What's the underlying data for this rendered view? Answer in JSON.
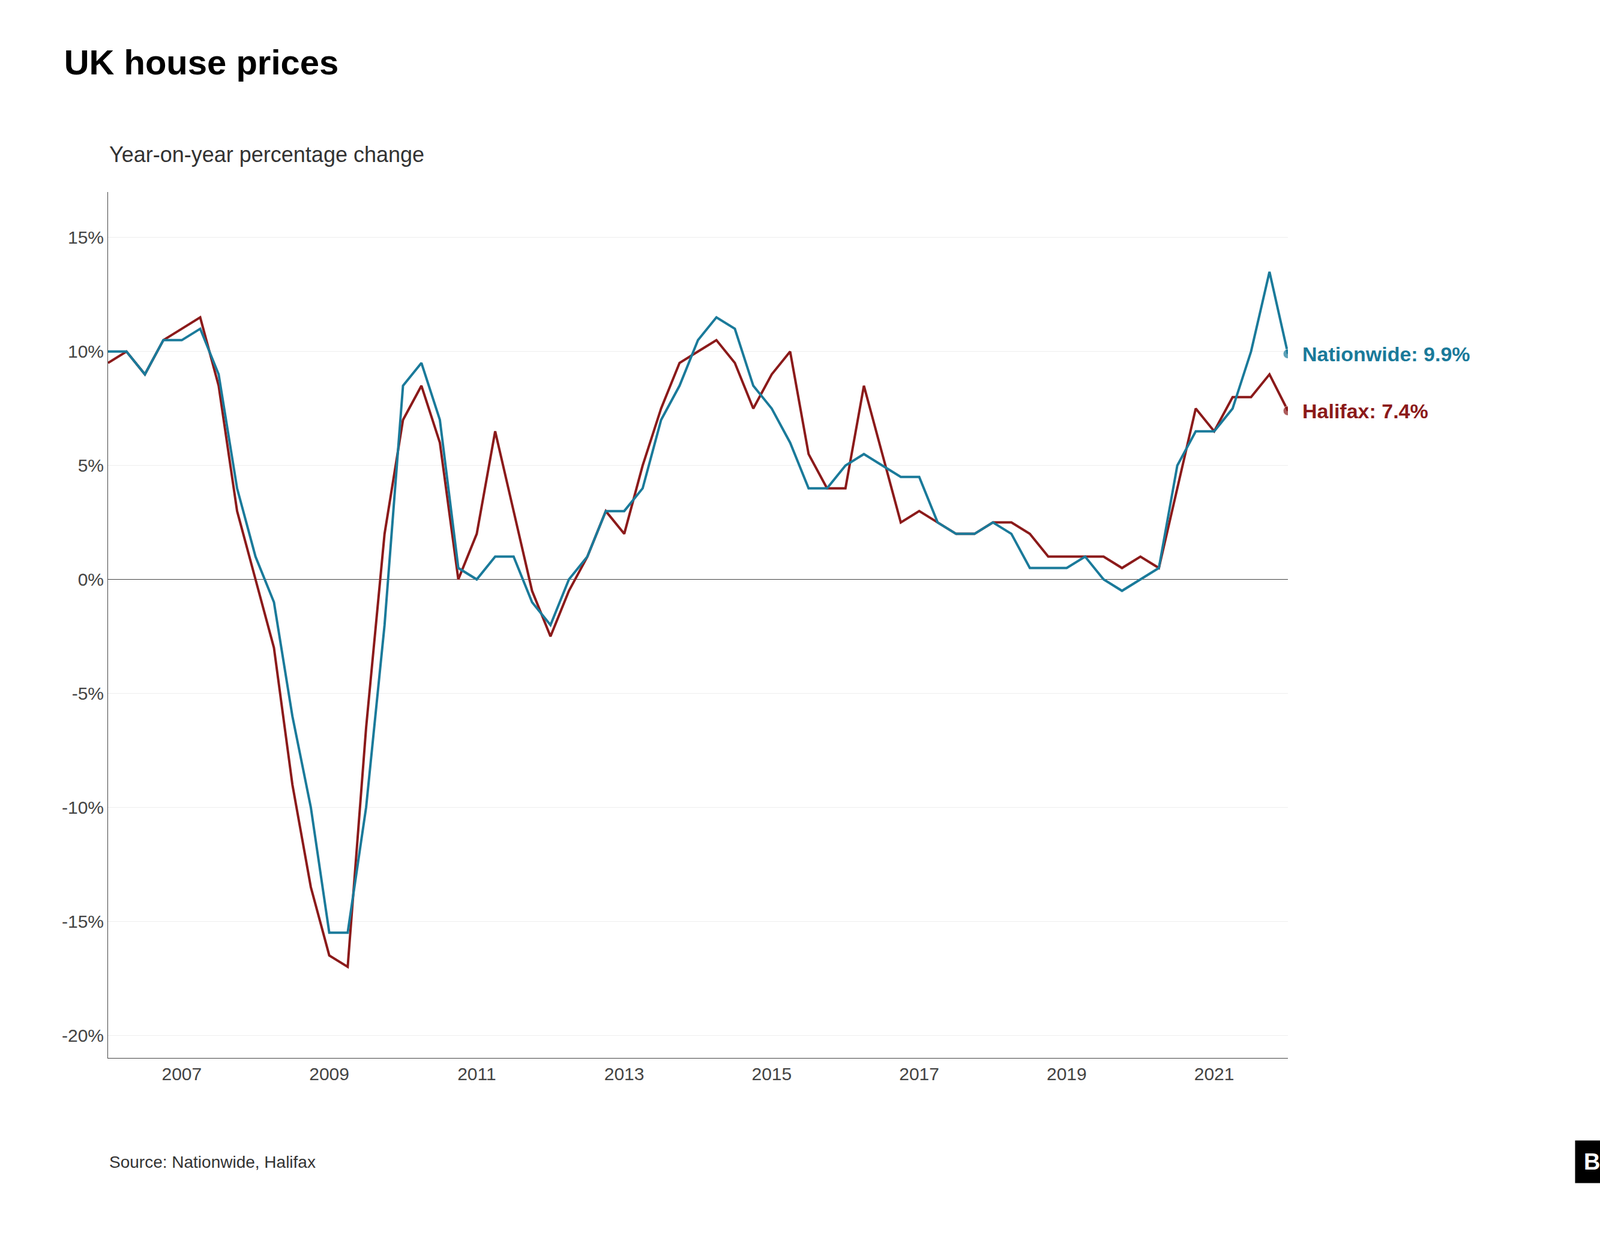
{
  "chart_data": {
    "type": "line",
    "title": "UK house prices",
    "subtitle": "Year-on-year percentage change",
    "annotations": [
      "Source: Nationwide, Halifax",
      "BBC"
    ],
    "x": [
      2006.0,
      2006.25,
      2006.5,
      2006.75,
      2007.0,
      2007.25,
      2007.5,
      2007.75,
      2008.0,
      2008.25,
      2008.5,
      2008.75,
      2009.0,
      2009.25,
      2009.5,
      2009.75,
      2010.0,
      2010.25,
      2010.5,
      2010.75,
      2011.0,
      2011.25,
      2011.5,
      2011.75,
      2012.0,
      2012.25,
      2012.5,
      2012.75,
      2013.0,
      2013.25,
      2013.5,
      2013.75,
      2014.0,
      2014.25,
      2014.5,
      2014.75,
      2015.0,
      2015.25,
      2015.5,
      2015.75,
      2016.0,
      2016.25,
      2016.5,
      2016.75,
      2017.0,
      2017.25,
      2017.5,
      2017.75,
      2018.0,
      2018.25,
      2018.5,
      2018.75,
      2019.0,
      2019.25,
      2019.5,
      2019.75,
      2020.0,
      2020.25,
      2020.5,
      2020.75,
      2021.0,
      2021.25,
      2021.5,
      2021.75,
      2022.0
    ],
    "series": [
      {
        "name": "Halifax: 7.4%",
        "color": "#8b1a1a",
        "values": [
          0.095,
          0.1,
          0.09,
          0.105,
          0.11,
          0.115,
          0.085,
          0.03,
          0.0,
          -0.03,
          -0.09,
          -0.135,
          -0.165,
          -0.17,
          -0.065,
          0.02,
          0.07,
          0.085,
          0.06,
          0.0,
          0.02,
          0.065,
          0.03,
          -0.005,
          -0.025,
          -0.005,
          0.01,
          0.03,
          0.02,
          0.05,
          0.075,
          0.095,
          0.1,
          0.105,
          0.095,
          0.075,
          0.09,
          0.1,
          0.055,
          0.04,
          0.04,
          0.085,
          0.055,
          0.025,
          0.03,
          0.025,
          0.02,
          0.02,
          0.025,
          0.025,
          0.02,
          0.01,
          0.01,
          0.01,
          0.01,
          0.005,
          0.01,
          0.005,
          0.04,
          0.075,
          0.065,
          0.08,
          0.08,
          0.09,
          0.074
        ]
      },
      {
        "name": "Nationwide: 9.9%",
        "color": "#1a7a9a",
        "values": [
          0.1,
          0.1,
          0.09,
          0.105,
          0.105,
          0.11,
          0.09,
          0.04,
          0.01,
          -0.01,
          -0.06,
          -0.1,
          -0.155,
          -0.155,
          -0.1,
          -0.02,
          0.085,
          0.095,
          0.07,
          0.005,
          0.0,
          0.01,
          0.01,
          -0.01,
          -0.02,
          0.0,
          0.01,
          0.03,
          0.03,
          0.04,
          0.07,
          0.085,
          0.105,
          0.115,
          0.11,
          0.085,
          0.075,
          0.06,
          0.04,
          0.04,
          0.05,
          0.055,
          0.05,
          0.045,
          0.045,
          0.025,
          0.02,
          0.02,
          0.025,
          0.02,
          0.005,
          0.005,
          0.005,
          0.01,
          0.0,
          -0.005,
          0.0,
          0.005,
          0.05,
          0.065,
          0.065,
          0.075,
          0.1,
          0.135,
          0.099
        ]
      }
    ],
    "xlim": [
      2006.0,
      2022.0
    ],
    "xticks": [
      2007,
      2009,
      2011,
      2013,
      2015,
      2017,
      2019,
      2021
    ],
    "ylim": [
      -0.21,
      0.17
    ],
    "yticks": [
      {
        "value": -0.2,
        "label": "-20%"
      },
      {
        "value": -0.15,
        "label": "-15%"
      },
      {
        "value": -0.1,
        "label": "-10%"
      },
      {
        "value": -0.05,
        "label": "-5%"
      },
      {
        "value": 0.0,
        "label": "0%"
      },
      {
        "value": 0.05,
        "label": "5%"
      },
      {
        "value": 0.1,
        "label": "10%"
      },
      {
        "value": 0.15,
        "label": "15%"
      }
    ],
    "grid": "y"
  }
}
